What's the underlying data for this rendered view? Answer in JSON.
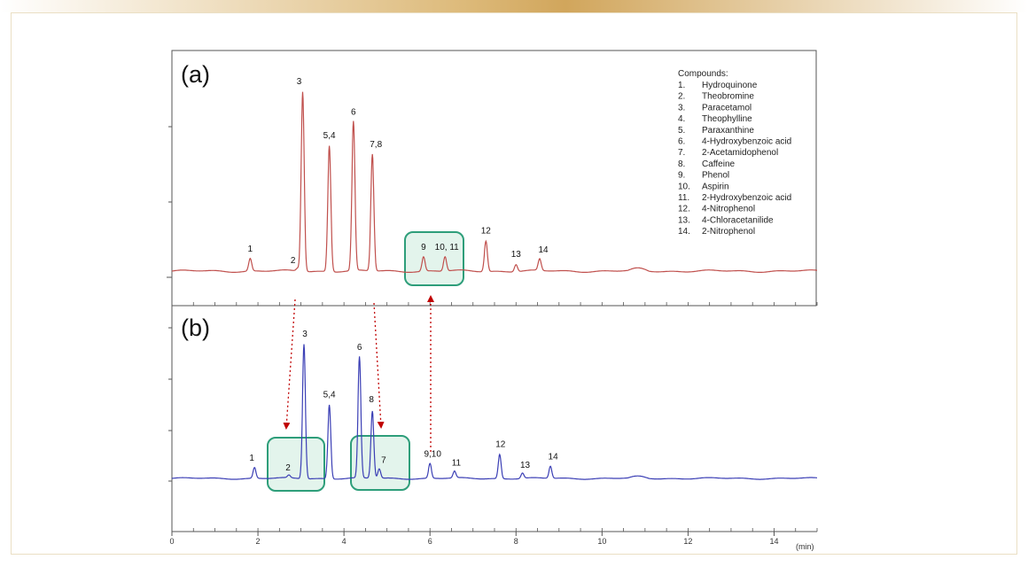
{
  "panels": {
    "a": {
      "label": "(a)"
    },
    "b": {
      "label": "(b)"
    }
  },
  "legend": {
    "title": "Compounds:",
    "items": [
      {
        "num": "1.",
        "name": "Hydroquinone"
      },
      {
        "num": "2.",
        "name": "Theobromine"
      },
      {
        "num": "3.",
        "name": "Paracetamol"
      },
      {
        "num": "4.",
        "name": "Theophylline"
      },
      {
        "num": "5.",
        "name": "Paraxanthine"
      },
      {
        "num": "6.",
        "name": "4-Hydroxybenzoic acid"
      },
      {
        "num": "7.",
        "name": "2-Acetamidophenol"
      },
      {
        "num": "8.",
        "name": "Caffeine"
      },
      {
        "num": "9.",
        "name": "Phenol"
      },
      {
        "num": "10.",
        "name": "Aspirin"
      },
      {
        "num": "11.",
        "name": "2-Hydroxybenzoic acid"
      },
      {
        "num": "12.",
        "name": "4-Nitrophenol"
      },
      {
        "num": "13.",
        "name": "4-Chloracetanilide"
      },
      {
        "num": "14.",
        "name": "2-Nitrophenol"
      }
    ]
  },
  "colors": {
    "trace_a": "#c0504d",
    "trace_b": "#3b3fb5",
    "box": "#2e9e7a",
    "box_fill": "#e3f4ec",
    "arrow": "#c00000"
  },
  "chart_data": {
    "type": "line",
    "xlabel": "(min)",
    "xlim": [
      0,
      15
    ],
    "x_ticks": [
      0,
      2,
      4,
      6,
      8,
      10,
      12,
      14
    ],
    "series": [
      {
        "name": "(a)",
        "peaks": [
          {
            "t": 1.82,
            "h": 0.07,
            "label": "1"
          },
          {
            "t": 2.92,
            "h": 0.015,
            "label": "2"
          },
          {
            "t": 3.04,
            "h": 1.0,
            "label": "3"
          },
          {
            "t": 3.66,
            "h": 0.7,
            "label": "5,4"
          },
          {
            "t": 4.22,
            "h": 0.83,
            "label": "6"
          },
          {
            "t": 4.66,
            "h": 0.65,
            "label": "7,8"
          },
          {
            "t": 5.85,
            "h": 0.08,
            "label": "9"
          },
          {
            "t": 6.35,
            "h": 0.08,
            "label": "10, 11"
          },
          {
            "t": 7.3,
            "h": 0.17,
            "label": "12"
          },
          {
            "t": 8.0,
            "h": 0.04,
            "label": "13"
          },
          {
            "t": 8.55,
            "h": 0.065,
            "label": "14"
          }
        ]
      },
      {
        "name": "(b)",
        "peaks": [
          {
            "t": 1.92,
            "h": 0.08,
            "label": "1"
          },
          {
            "t": 2.72,
            "h": 0.02,
            "label": "2"
          },
          {
            "t": 3.07,
            "h": 1.0,
            "label": "3"
          },
          {
            "t": 3.66,
            "h": 0.55,
            "label": "5,4"
          },
          {
            "t": 4.36,
            "h": 0.9,
            "label": "6"
          },
          {
            "t": 4.66,
            "h": 0.5,
            "label": "8"
          },
          {
            "t": 4.82,
            "h": 0.07,
            "label": "7"
          },
          {
            "t": 6.0,
            "h": 0.11,
            "label": "9,10"
          },
          {
            "t": 6.57,
            "h": 0.05,
            "label": "11"
          },
          {
            "t": 7.62,
            "h": 0.18,
            "label": "12"
          },
          {
            "t": 8.15,
            "h": 0.04,
            "label": "13"
          },
          {
            "t": 8.8,
            "h": 0.09,
            "label": "14"
          }
        ]
      }
    ]
  }
}
